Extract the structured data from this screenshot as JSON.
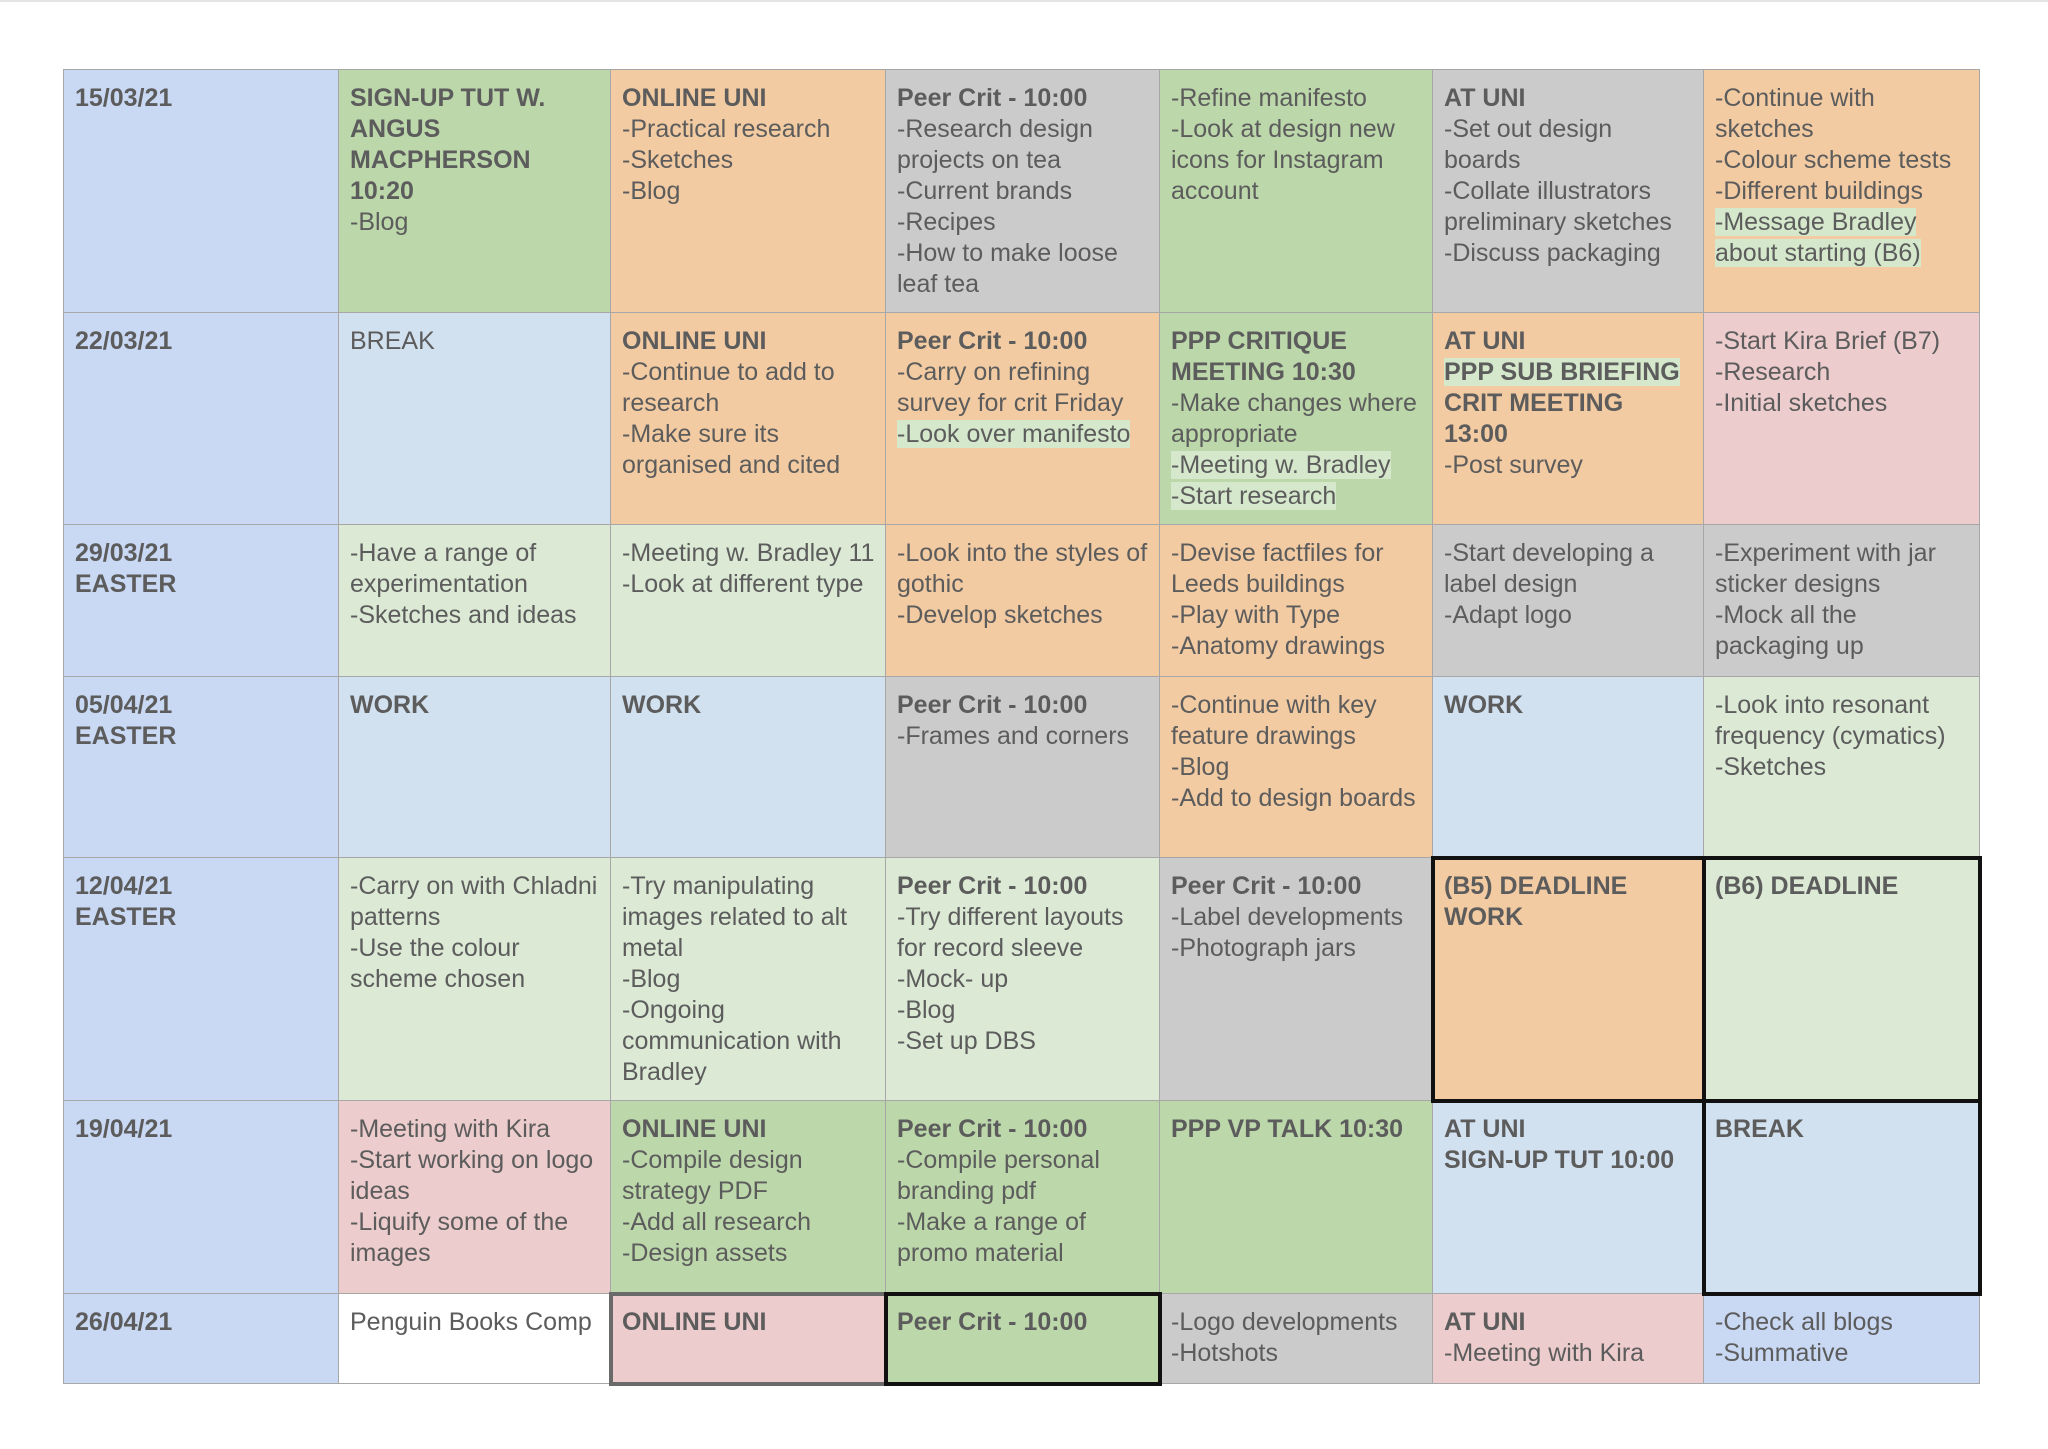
{
  "colors": {
    "blue": "#c9d8f3",
    "lightblue": "#d2e1f0",
    "green": "#bcd7aa",
    "lightgreen": "#dbe9d5",
    "orange": "#f3cba2",
    "gray": "#cbcbcb",
    "pink": "#eccccc",
    "white": "#ffffff",
    "highlight": "#d5e8cc"
  },
  "rows": [
    {
      "date": [
        "15/03/21"
      ],
      "cells": [
        {
          "bg": "green",
          "lines": [
            {
              "t": "SIGN-UP TUT W. ANGUS MACPHERSON 10:20",
              "b": true
            },
            {
              "t": "-Blog"
            }
          ]
        },
        {
          "bg": "orange",
          "lines": [
            {
              "t": "ONLINE UNI",
              "b": true
            },
            {
              "t": "-Practical research"
            },
            {
              "t": "-Sketches"
            },
            {
              "t": "-Blog"
            }
          ]
        },
        {
          "bg": "gray",
          "lines": [
            {
              "t": "Peer Crit - 10:00",
              "b": true
            },
            {
              "t": "-Research design projects on tea"
            },
            {
              "t": "-Current brands"
            },
            {
              "t": "-Recipes"
            },
            {
              "t": "-How to make loose leaf tea"
            }
          ]
        },
        {
          "bg": "green",
          "lines": [
            {
              "t": "-Refine manifesto"
            },
            {
              "t": "-Look at design new icons for Instagram account"
            }
          ]
        },
        {
          "bg": "gray",
          "lines": [
            {
              "t": "AT UNI",
              "b": true
            },
            {
              "t": "-Set out design boards"
            },
            {
              "t": "-Collate illustrators preliminary sketches"
            },
            {
              "t": "-Discuss packaging"
            }
          ]
        },
        {
          "bg": "orange",
          "lines": [
            {
              "t": "-Continue with sketches"
            },
            {
              "t": "-Colour scheme tests"
            },
            {
              "t": "-Different buildings"
            },
            {
              "t": "-Message Bradley about starting (B6)",
              "hl": true
            }
          ]
        }
      ]
    },
    {
      "date": [
        "22/03/21"
      ],
      "cells": [
        {
          "bg": "lightblue",
          "lines": [
            {
              "t": "BREAK"
            }
          ]
        },
        {
          "bg": "orange",
          "lines": [
            {
              "t": "ONLINE UNI",
              "b": true
            },
            {
              "t": "-Continue to add to research"
            },
            {
              "t": "-Make sure its organised and cited"
            }
          ]
        },
        {
          "bg": "orange",
          "lines": [
            {
              "t": "Peer Crit - 10:00",
              "b": true
            },
            {
              "t": "-Carry on refining survey for crit Friday"
            },
            {
              "t": "-Look over manifesto",
              "hl": true
            }
          ]
        },
        {
          "bg": "green",
          "lines": [
            {
              "t": "PPP CRITIQUE MEETING 10:30",
              "b": true
            },
            {
              "t": "-Make changes where appropriate"
            },
            {
              "t": "-Meeting w. Bradley",
              "hl": true
            },
            {
              "t": "-Start research",
              "hl": true
            }
          ]
        },
        {
          "bg": "orange",
          "lines": [
            {
              "t": "AT UNI",
              "b": true
            },
            {
              "t": "PPP SUB BRIEFING",
              "b": true,
              "hl": true
            },
            {
              "t": "CRIT MEETING 13:00",
              "b": true
            },
            {
              "t": "-Post survey"
            }
          ]
        },
        {
          "bg": "pink",
          "lines": [
            {
              "t": "-Start Kira Brief (B7)"
            },
            {
              "t": "-Research"
            },
            {
              "t": "-Initial sketches"
            }
          ]
        }
      ]
    },
    {
      "date": [
        "29/03/21",
        "EASTER"
      ],
      "cells": [
        {
          "bg": "lightgreen",
          "lines": [
            {
              "t": "-Have a range of experimentation"
            },
            {
              "t": "-Sketches and ideas"
            }
          ]
        },
        {
          "bg": "lightgreen",
          "lines": [
            {
              "t": "-Meeting w. Bradley 11"
            },
            {
              "t": "-Look at different type"
            }
          ]
        },
        {
          "bg": "orange",
          "lines": [
            {
              "t": "-Look into the styles of gothic"
            },
            {
              "t": "-Develop sketches"
            }
          ]
        },
        {
          "bg": "orange",
          "lines": [
            {
              "t": "-Devise factfiles for Leeds buildings"
            },
            {
              "t": "-Play with Type"
            },
            {
              "t": "-Anatomy drawings"
            }
          ]
        },
        {
          "bg": "gray",
          "lines": [
            {
              "t": "-Start developing a label design"
            },
            {
              "t": "-Adapt logo"
            }
          ]
        },
        {
          "bg": "gray",
          "lines": [
            {
              "t": "-Experiment with jar sticker designs"
            },
            {
              "t": "-Mock all the packaging up"
            }
          ]
        }
      ]
    },
    {
      "date": [
        "05/04/21",
        "EASTER"
      ],
      "cells": [
        {
          "bg": "lightblue",
          "lines": [
            {
              "t": "WORK",
              "b": true
            }
          ]
        },
        {
          "bg": "lightblue",
          "lines": [
            {
              "t": "WORK",
              "b": true
            }
          ]
        },
        {
          "bg": "gray",
          "lines": [
            {
              "t": "Peer Crit - 10:00",
              "b": true
            },
            {
              "t": "-Frames and corners"
            }
          ]
        },
        {
          "bg": "orange",
          "lines": [
            {
              "t": "-Continue with key feature drawings"
            },
            {
              "t": "-Blog"
            },
            {
              "t": "-Add to design boards"
            }
          ]
        },
        {
          "bg": "lightblue",
          "lines": [
            {
              "t": "WORK",
              "b": true
            }
          ]
        },
        {
          "bg": "lightgreen",
          "lines": [
            {
              "t": "-Look into resonant frequency (cymatics)"
            },
            {
              "t": "-Sketches"
            }
          ]
        }
      ]
    },
    {
      "date": [
        "12/04/21",
        "EASTER"
      ],
      "cells": [
        {
          "bg": "lightgreen",
          "lines": [
            {
              "t": "-Carry on with Chladni patterns"
            },
            {
              "t": "-Use the colour scheme chosen"
            }
          ]
        },
        {
          "bg": "lightgreen",
          "lines": [
            {
              "t": "-Try manipulating images related to alt metal"
            },
            {
              "t": "-Blog"
            },
            {
              "t": "-Ongoing communication with Bradley"
            }
          ]
        },
        {
          "bg": "lightgreen",
          "lines": [
            {
              "t": "Peer Crit - 10:00",
              "b": true
            },
            {
              "t": "-Try different layouts for record sleeve"
            },
            {
              "t": "-Mock- up"
            },
            {
              "t": "-Blog"
            },
            {
              "t": "-Set up DBS"
            }
          ]
        },
        {
          "bg": "gray",
          "lines": [
            {
              "t": "Peer Crit - 10:00",
              "b": true
            },
            {
              "t": "-Label developments"
            },
            {
              "t": "-Photograph jars"
            }
          ]
        },
        {
          "bg": "orange",
          "border": "dark",
          "black": true,
          "lines": [
            {
              "t": "(B5) DEADLINE WORK",
              "b": true
            }
          ]
        },
        {
          "bg": "lightgreen",
          "border": "dark",
          "black": true,
          "lines": [
            {
              "t": "(B6) DEADLINE",
              "b": true
            }
          ]
        }
      ]
    },
    {
      "date": [
        "19/04/21"
      ],
      "cells": [
        {
          "bg": "pink",
          "lines": [
            {
              "t": "-Meeting with Kira"
            },
            {
              "t": "-Start working on logo ideas"
            },
            {
              "t": "-Liquify some of the images"
            }
          ]
        },
        {
          "bg": "green",
          "lines": [
            {
              "t": "ONLINE UNI",
              "b": true
            },
            {
              "t": "-Compile design strategy PDF"
            },
            {
              "t": "-Add all research"
            },
            {
              "t": "-Design assets"
            }
          ]
        },
        {
          "bg": "green",
          "lines": [
            {
              "t": "Peer Crit - 10:00",
              "b": true
            },
            {
              "t": "-Compile personal branding pdf"
            },
            {
              "t": "-Make a range of promo material"
            }
          ]
        },
        {
          "bg": "green",
          "lines": [
            {
              "t": "PPP VP TALK 10:30",
              "b": true
            }
          ]
        },
        {
          "bg": "lightblue",
          "lines": [
            {
              "t": "AT UNI",
              "b": true
            },
            {
              "t": "SIGN-UP TUT 10:00",
              "b": true
            }
          ]
        },
        {
          "bg": "lightblue",
          "border": "dark",
          "lines": [
            {
              "t": "BREAK",
              "b": true
            }
          ]
        }
      ]
    },
    {
      "date": [
        "26/04/21"
      ],
      "cells": [
        {
          "bg": "white",
          "lines": [
            {
              "t": "Penguin Books Comp"
            }
          ]
        },
        {
          "bg": "pink",
          "border": "mid",
          "lines": [
            {
              "t": "ONLINE UNI",
              "b": true
            }
          ]
        },
        {
          "bg": "green",
          "border": "dark",
          "lines": [
            {
              "t": "Peer Crit - 10:00",
              "b": true
            }
          ]
        },
        {
          "bg": "gray",
          "lines": [
            {
              "t": "-Logo developments"
            },
            {
              "t": "-Hotshots"
            }
          ]
        },
        {
          "bg": "pink",
          "lines": [
            {
              "t": "AT UNI",
              "b": true
            },
            {
              "t": "-Meeting with Kira"
            }
          ]
        },
        {
          "bg": "blue",
          "lines": [
            {
              "t": "-Check all blogs"
            },
            {
              "t": "-Summative"
            }
          ]
        }
      ]
    }
  ]
}
